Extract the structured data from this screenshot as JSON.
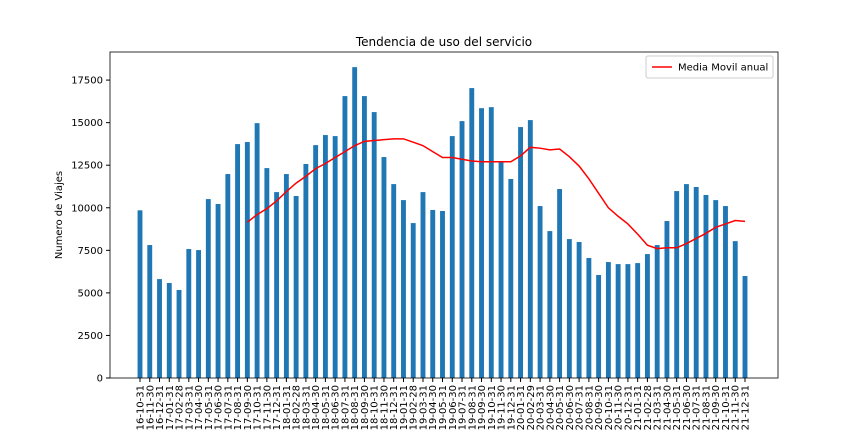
{
  "chart_data": {
    "type": "bar",
    "title": "Tendencia de uso del servicio",
    "y_label": "Numero de Viajes",
    "categories": [
      "16-10-31",
      "16-11-30",
      "16-12-31",
      "17-01-31",
      "17-02-28",
      "17-03-31",
      "17-04-30",
      "17-05-31",
      "17-06-30",
      "17-07-31",
      "17-08-31",
      "17-09-30",
      "17-10-31",
      "17-11-30",
      "17-12-31",
      "18-01-31",
      "18-02-28",
      "18-03-31",
      "18-04-30",
      "18-05-31",
      "18-06-30",
      "18-07-31",
      "18-08-31",
      "18-09-30",
      "18-10-31",
      "18-11-30",
      "18-12-31",
      "19-01-31",
      "19-02-28",
      "19-03-31",
      "19-04-30",
      "19-05-31",
      "19-06-30",
      "19-07-31",
      "19-08-31",
      "19-09-30",
      "19-10-31",
      "19-11-30",
      "19-12-31",
      "20-01-31",
      "20-02-29",
      "20-03-31",
      "20-04-30",
      "20-05-31",
      "20-06-30",
      "20-07-31",
      "20-08-31",
      "20-09-30",
      "20-10-31",
      "20-11-30",
      "20-12-31",
      "21-01-31",
      "21-02-28",
      "21-03-31",
      "21-04-30",
      "21-05-31",
      "21-06-30",
      "21-07-31",
      "21-08-31",
      "21-09-30",
      "21-10-31",
      "21-11-30",
      "21-12-31"
    ],
    "values": [
      9850,
      7810,
      5810,
      5580,
      5170,
      7575,
      7515,
      10510,
      10220,
      11980,
      13740,
      13860,
      14970,
      12330,
      10920,
      11980,
      10690,
      12570,
      13680,
      14270,
      14210,
      16560,
      18260,
      16560,
      15620,
      12980,
      11390,
      10450,
      9100,
      10920,
      9870,
      9810,
      14210,
      15090,
      17030,
      15850,
      15910,
      12680,
      11690,
      14740,
      15150,
      10100,
      8630,
      11100,
      8160,
      7990,
      7050,
      6050,
      6810,
      6690,
      6690,
      6750,
      7280,
      7810,
      9220,
      10980,
      11390,
      11220,
      10750,
      10450,
      10100,
      8040,
      5990
    ],
    "color": "#1f77b4",
    "series": [
      {
        "name": "Media Movil anual",
        "color": "#ff0000",
        "values": [
          null,
          null,
          null,
          null,
          null,
          null,
          null,
          null,
          null,
          null,
          null,
          9150,
          9600,
          9950,
          10400,
          10950,
          11450,
          11850,
          12300,
          12600,
          12950,
          13300,
          13650,
          13900,
          13950,
          14000,
          14050,
          14050,
          13850,
          13650,
          13300,
          12950,
          12950,
          12850,
          12750,
          12700,
          12700,
          12700,
          12700,
          13050,
          13550,
          13500,
          13400,
          13450,
          13000,
          12450,
          11700,
          10850,
          10000,
          9500,
          9050,
          8450,
          7800,
          7600,
          7650,
          7650,
          7900,
          8200,
          8500,
          8850,
          9050,
          9250,
          9200
        ]
      }
    ],
    "ylim": [
      0,
      19150
    ],
    "yticks": [
      0,
      2500,
      5000,
      7500,
      10000,
      12500,
      15000,
      17500
    ],
    "legend": "upper right"
  }
}
